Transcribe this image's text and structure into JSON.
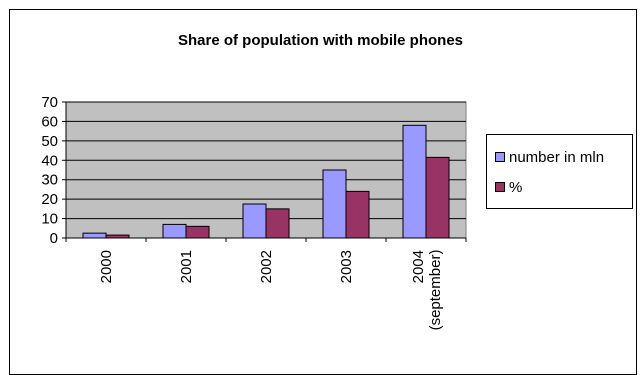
{
  "chart_data": {
    "type": "bar",
    "title": "Share of population with mobile phones",
    "categories": [
      "2000",
      "2001",
      "2002",
      "2003",
      "2004\n(september)"
    ],
    "series": [
      {
        "name": "number in mln",
        "values": [
          2.5,
          7,
          17.5,
          35,
          58
        ],
        "color": "#9999FF"
      },
      {
        "name": "%",
        "values": [
          1.5,
          6,
          15,
          24,
          41.5
        ],
        "color": "#993366"
      }
    ],
    "ylim": [
      0,
      70
    ],
    "yticks": [
      0,
      10,
      20,
      30,
      40,
      50,
      60,
      70
    ],
    "grid": true,
    "plot_background": "#C0C0C0",
    "legend": "right",
    "xlabel": "",
    "ylabel": ""
  }
}
